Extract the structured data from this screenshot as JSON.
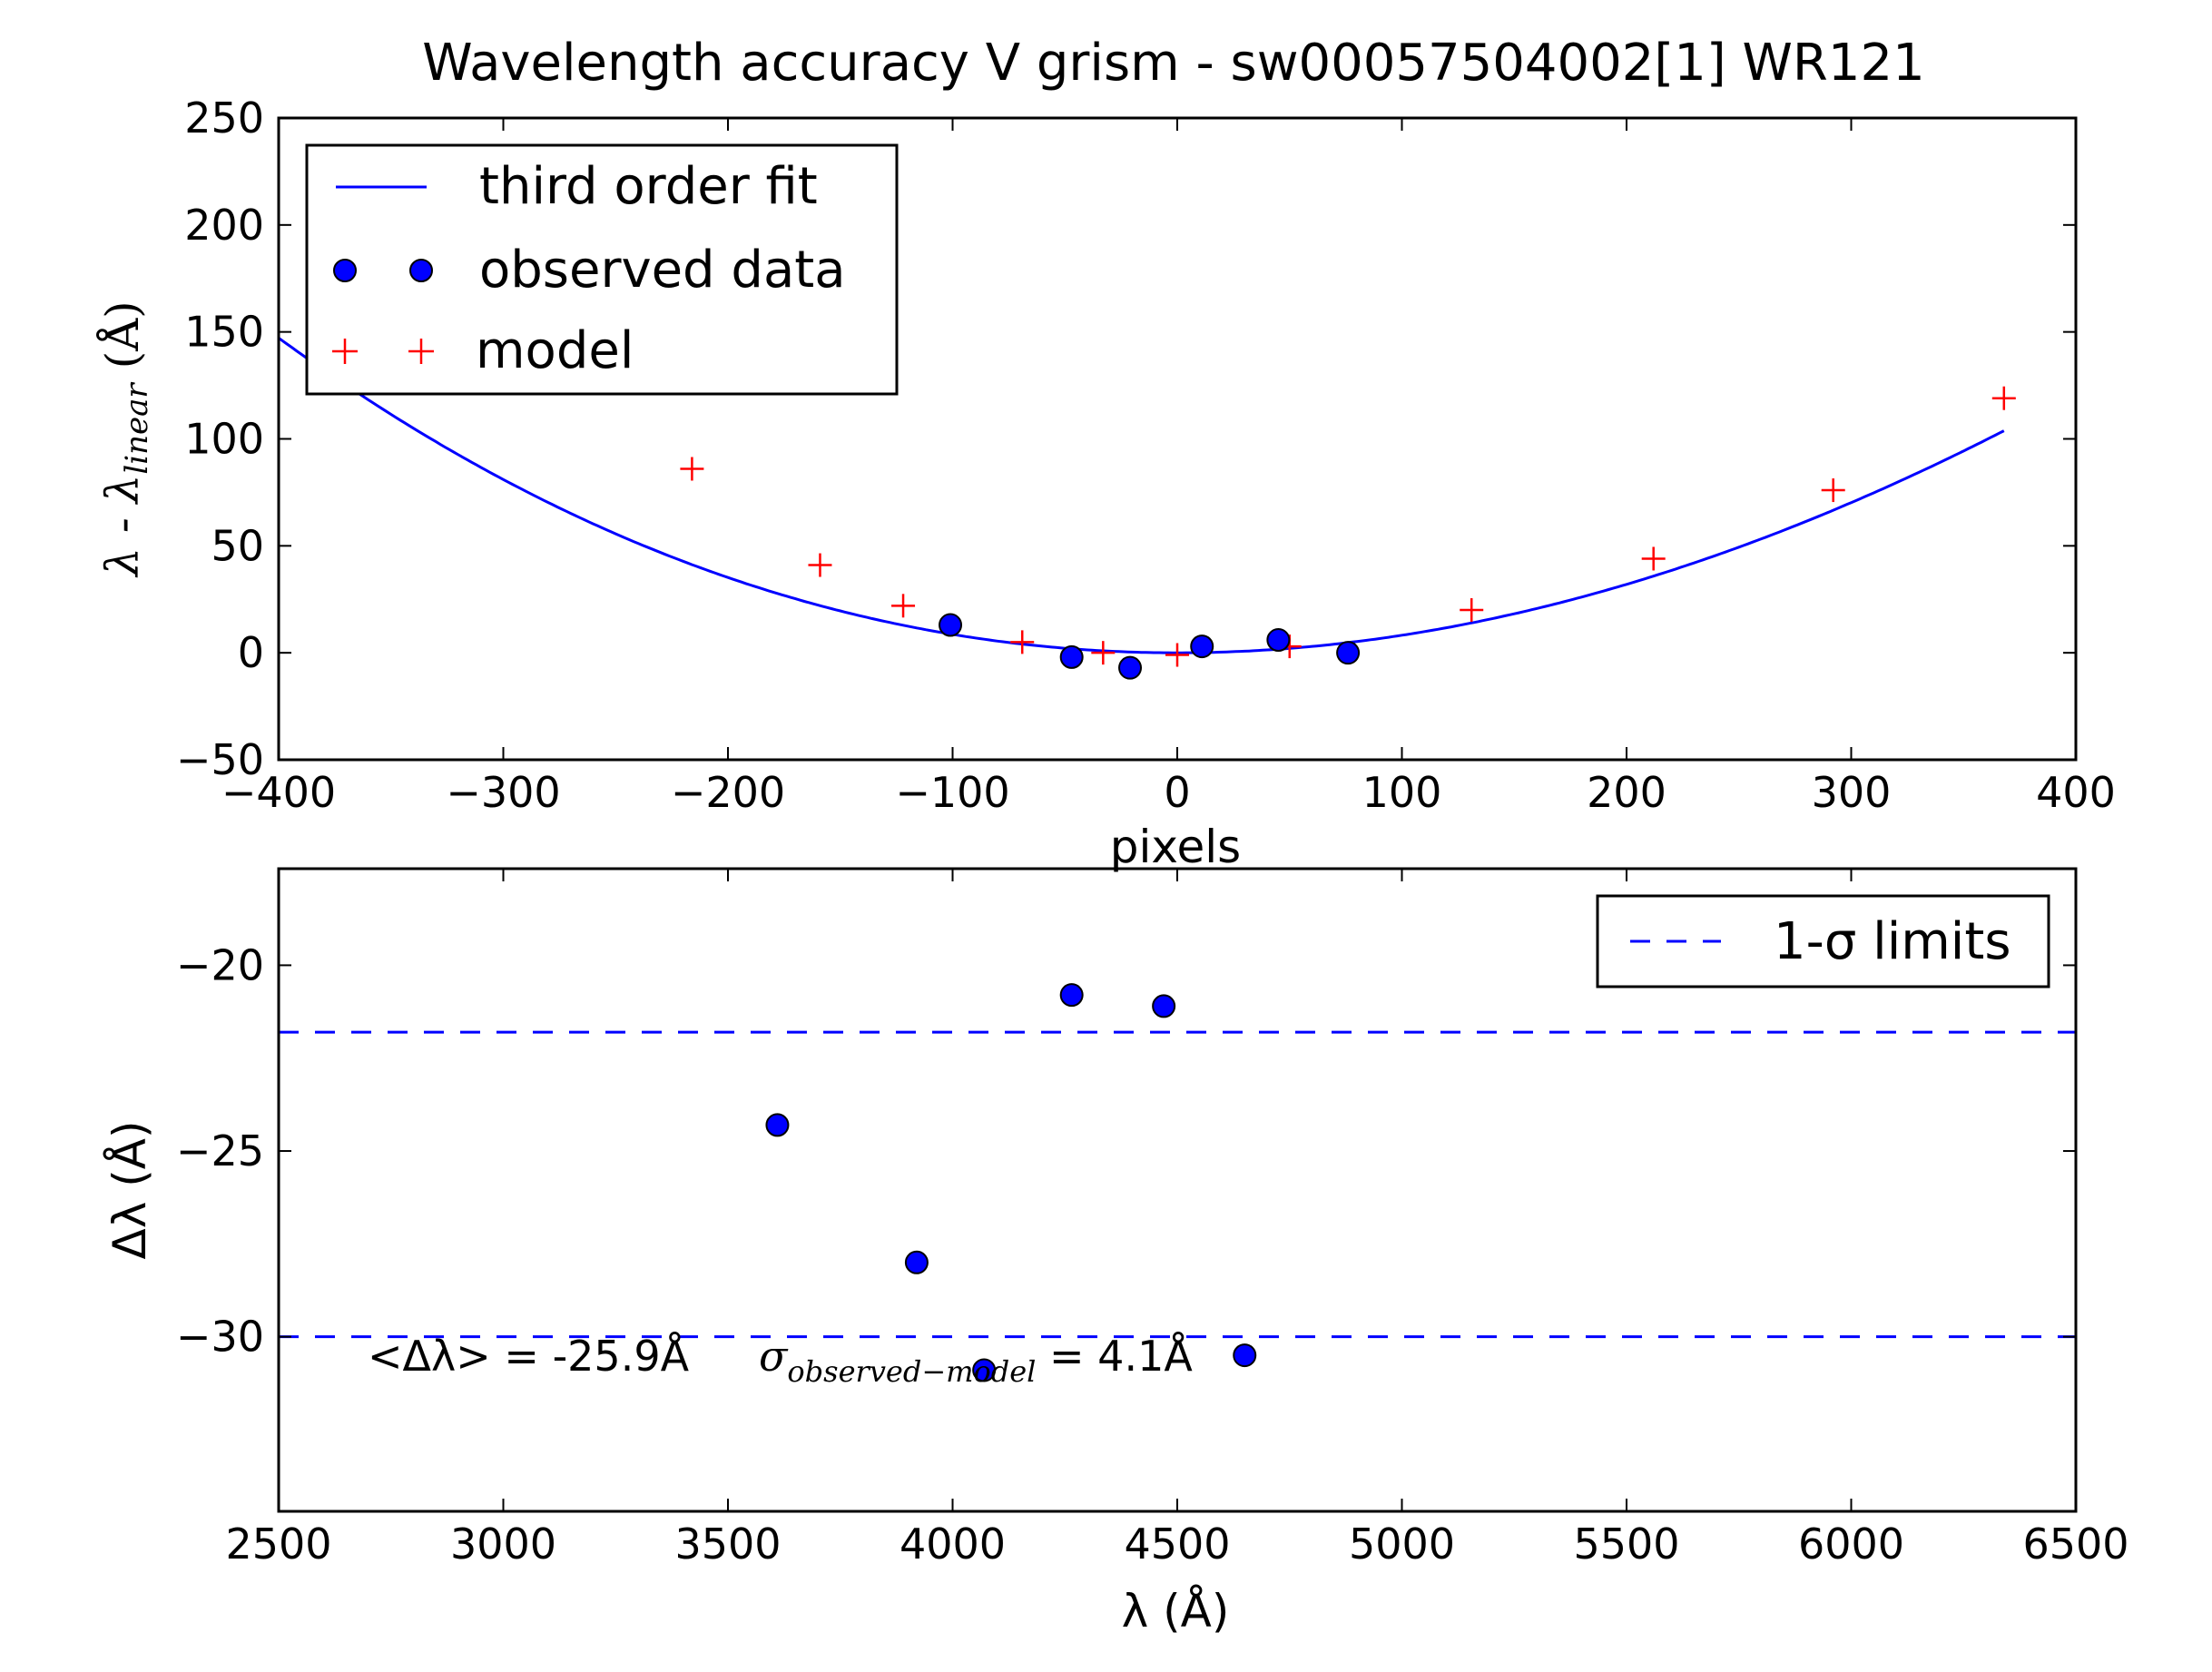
{
  "colors": {
    "fit": "#0000ff",
    "observed": "#0000ff",
    "model": "#ff0000",
    "limits": "#0000ff",
    "axes": "#000000"
  },
  "chart_data": [
    {
      "type": "scatter",
      "title": "Wavelength accuracy V grism - sw00057504002[1] WR121",
      "xlabel": "pixels",
      "ylabel": "λ - λ_linear (Å)",
      "xlim": [
        -400,
        400
      ],
      "ylim": [
        -50,
        250
      ],
      "xticks": [
        -400,
        -300,
        -200,
        -100,
        0,
        100,
        200,
        300,
        400
      ],
      "xtick_labels": [
        "−400",
        "−300",
        "−200",
        "−100",
        "0",
        "100",
        "200",
        "300",
        "400"
      ],
      "yticks": [
        -50,
        0,
        50,
        100,
        150,
        200,
        250
      ],
      "ytick_labels": [
        "−50",
        "0",
        "50",
        "100",
        "150",
        "200",
        "250"
      ],
      "legend_position": "upper-left",
      "series": [
        {
          "name": "third order fit",
          "kind": "line",
          "x_range": [
            -400,
            368
          ],
          "coefficients": {
            "a1": 0.0,
            "a2": 0.00084,
            "a3": -2e-07
          }
        },
        {
          "name": "observed data",
          "kind": "markers",
          "x": [
            -101,
            -47,
            -21,
            11,
            45,
            76
          ],
          "y": [
            13,
            -2,
            -7,
            3,
            6,
            0
          ]
        },
        {
          "name": "model",
          "kind": "markers",
          "x": [
            -216,
            -159,
            -122,
            -69,
            -33,
            0,
            50,
            131,
            212,
            292,
            368
          ],
          "y": [
            86,
            41,
            22,
            5,
            0,
            -1,
            3,
            20,
            44,
            76,
            119
          ]
        }
      ]
    },
    {
      "type": "scatter",
      "xlabel": "λ (Å)",
      "ylabel": "Δλ (Å)",
      "xlim": [
        2500,
        6500
      ],
      "ylim": [
        -34.7,
        -17.4
      ],
      "xticks": [
        2500,
        3000,
        3500,
        4000,
        4500,
        5000,
        5500,
        6000,
        6500
      ],
      "xtick_labels": [
        "2500",
        "3000",
        "3500",
        "4000",
        "4500",
        "5000",
        "5500",
        "6000",
        "6500"
      ],
      "yticks": [
        -30,
        -25,
        -20
      ],
      "ytick_labels": [
        "−30",
        "−25",
        "−20"
      ],
      "legend_position": "upper-right",
      "series": [
        {
          "name": "observed data",
          "kind": "markers",
          "x": [
            3610,
            3920,
            4070,
            4265,
            4470,
            4650
          ],
          "y": [
            -24.3,
            -28.0,
            -30.9,
            -20.8,
            -21.1,
            -30.5
          ]
        },
        {
          "name": "1-σ limits",
          "kind": "hlines",
          "y": [
            -21.8,
            -30.0
          ]
        }
      ],
      "annotation": {
        "mean_label": "<Δλ> = -25.9Å",
        "sigma_label": "σ",
        "sigma_subscript": "observed−model",
        "sigma_value": " = 4.1Å"
      }
    }
  ]
}
